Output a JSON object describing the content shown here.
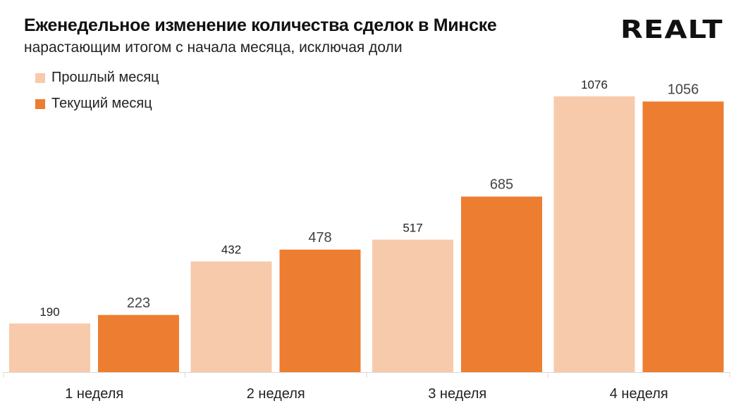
{
  "title": "Еженедельное изменение количества сделок в Минске",
  "subtitle": "нарастающим итогом с начала месяца, исключая доли",
  "logo": "REALT",
  "colors": {
    "previous": "#F7CAAC",
    "current": "#ED7D31",
    "axis": "#D9D9D9"
  },
  "chart_data": {
    "type": "bar",
    "title": "Еженедельное изменение количества сделок в Минске",
    "subtitle": "нарастающим итогом с начала месяца, исключая доли",
    "categories": [
      "1 неделя",
      "2 неделя",
      "3 неделя",
      "4 неделя"
    ],
    "series": [
      {
        "name": "Прошлый месяц",
        "values": [
          190,
          432,
          517,
          1076
        ]
      },
      {
        "name": "Текущий месяц",
        "values": [
          223,
          478,
          685,
          1056
        ]
      }
    ],
    "ylim": [
      0,
      1076
    ],
    "grid": false,
    "legend": "top-left"
  }
}
